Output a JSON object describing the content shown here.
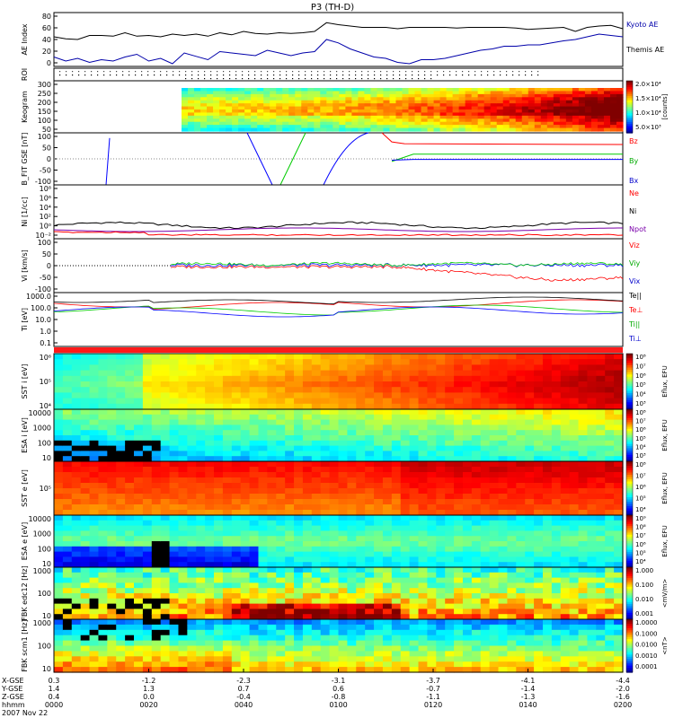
{
  "title": "P3 (TH-D)",
  "chart_data": {
    "type": "line",
    "title": "P3 (TH-D)",
    "x_tick_rows": [
      {
        "label": "X-GSE",
        "values": [
          "0.3",
          "-1.2",
          "-2.3",
          "-3.1",
          "-3.7",
          "-4.1",
          "-4.4"
        ]
      },
      {
        "label": "Y-GSE",
        "values": [
          "1.4",
          "1.3",
          "0.7",
          "0.6",
          "-0.7",
          "-1.4",
          "-2.0"
        ]
      },
      {
        "label": "Z-GSE",
        "values": [
          "0.4",
          "0.0",
          "-0.4",
          "-0.8",
          "-1.1",
          "-1.3",
          "-1.6"
        ]
      },
      {
        "label": "hhmm",
        "values": [
          "0000",
          "0020",
          "0040",
          "0100",
          "0120",
          "0140",
          "0200"
        ]
      }
    ],
    "x_date": "2007 Nov 22",
    "panels": [
      {
        "id": "ae",
        "ylabel": "AE Index",
        "yticks": [
          "80",
          "60",
          "40",
          "20",
          "0"
        ],
        "legend": [
          "Kyoto AE",
          "Themis AE"
        ],
        "series": [
          {
            "name": "Kyoto AE",
            "color": "#000000",
            "values": [
              44,
              41,
              40,
              46,
              46,
              45,
              50,
              45,
              46,
              44,
              48,
              46,
              48,
              45,
              50,
              47,
              52,
              49,
              48,
              50,
              49,
              50,
              52,
              65,
              62,
              60,
              58,
              58,
              58,
              56,
              58,
              58,
              58,
              58,
              57,
              58,
              58,
              58,
              58,
              57,
              55,
              56,
              57,
              58,
              52,
              58,
              60,
              61,
              56
            ]
          },
          {
            "name": "Themis AE",
            "color": "#0000aa",
            "values": [
              14,
              8,
              12,
              6,
              10,
              8,
              14,
              18,
              8,
              12,
              4,
              20,
              15,
              10,
              22,
              20,
              18,
              16,
              24,
              20,
              16,
              20,
              22,
              40,
              35,
              26,
              20,
              14,
              12,
              6,
              4,
              10,
              10,
              12,
              16,
              20,
              24,
              26,
              30,
              30,
              32,
              32,
              35,
              38,
              40,
              44,
              48,
              46,
              44
            ]
          }
        ]
      },
      {
        "id": "roi",
        "ylabel": "ROI"
      },
      {
        "id": "keogram",
        "ylabel": "Keogram",
        "yticks": [
          "300",
          "250",
          "200",
          "150",
          "100",
          "50"
        ],
        "colorbar_label": "[counts]",
        "colorbar_ticks": [
          "2.0×10⁴",
          "1.5×10⁴",
          "1.0×10⁴",
          "5.0×10³"
        ]
      },
      {
        "id": "bfit",
        "ylabel": "B_FIT GSE [nT]",
        "yticks": [
          "100",
          "50",
          "0",
          "-50",
          "-100"
        ],
        "legend": [
          "Bz",
          "By",
          "Bx"
        ],
        "series": [
          {
            "name": "Bz",
            "color": "#ff0000"
          },
          {
            "name": "By",
            "color": "#00cc00"
          },
          {
            "name": "Bx",
            "color": "#0000ff"
          }
        ]
      },
      {
        "id": "density",
        "ylabel": "Ni [1/cc]",
        "yticks": [
          "10⁸",
          "10⁶",
          "10⁴",
          "10²",
          "10⁰",
          "10⁻²"
        ],
        "legend": [
          "Ne",
          "Ni",
          "Npot"
        ]
      },
      {
        "id": "velocity",
        "ylabel": "Vi [km/s]",
        "yticks": [
          "100",
          "50",
          "0",
          "-50",
          "-100"
        ],
        "legend": [
          "Viz",
          "Viy",
          "Vix"
        ]
      },
      {
        "id": "temperature",
        "ylabel": "Ti [eV]",
        "yticks": [
          "1000.0",
          "100.0",
          "10.0",
          "1.0",
          "0.1"
        ],
        "legend": [
          "Te||",
          "Te⊥",
          "Ti||",
          "Ti⊥"
        ]
      },
      {
        "id": "sst_i",
        "ylabel": "SST i [eV]",
        "yticks": [
          "10⁶",
          "10⁵",
          "10⁴"
        ],
        "colorbar_label": "Eflux, EFU",
        "colorbar_ticks": [
          "10⁸",
          "10⁷",
          "10⁶",
          "10⁵",
          "10⁴",
          "10³"
        ]
      },
      {
        "id": "esa_i",
        "ylabel": "ESA i [eV]",
        "yticks": [
          "10000",
          "1000",
          "100",
          "10"
        ],
        "colorbar_label": "Eflux, EFU",
        "colorbar_ticks": [
          "10⁸",
          "10⁷",
          "10⁶",
          "10⁵",
          "10⁴",
          "10³"
        ]
      },
      {
        "id": "sst_e",
        "ylabel": "SST e [eV]",
        "yticks": [
          "10⁵"
        ],
        "colorbar_label": "Eflux, EFU",
        "colorbar_ticks": [
          "10⁸",
          "10⁷",
          "10⁶",
          "10⁵",
          "10⁴"
        ]
      },
      {
        "id": "esa_e",
        "ylabel": "ESA e [eV]",
        "yticks": [
          "10000",
          "1000",
          "100",
          "10"
        ],
        "colorbar_label": "Eflux, EFU",
        "colorbar_ticks": [
          "10⁹",
          "10⁸",
          "10⁷",
          "10⁶",
          "10⁵",
          "10⁴"
        ]
      },
      {
        "id": "fbk_e",
        "ylabel": "FBK edc12 [Hz]",
        "yticks": [
          "1000",
          "100",
          "10"
        ],
        "colorbar_label": "<mV/m>",
        "colorbar_ticks": [
          "1.000",
          "0.100",
          "0.010",
          "0.001"
        ]
      },
      {
        "id": "fbk_b",
        "ylabel": "FBK scm1 [Hz]",
        "yticks": [
          "1000",
          "100",
          "10"
        ],
        "colorbar_label": "<nT>",
        "colorbar_ticks": [
          "1.0000",
          "0.1000",
          "0.0100",
          "0.0010",
          "0.0001"
        ]
      }
    ]
  }
}
